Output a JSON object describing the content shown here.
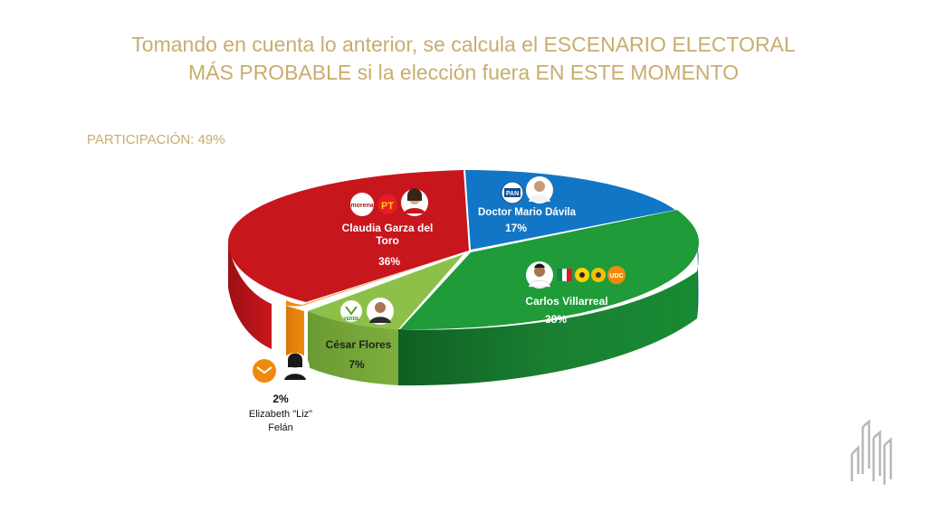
{
  "header": {
    "title_line1": "Tomando en cuenta lo anterior, se calcula el ESCENARIO ELECTORAL",
    "title_line2": "MÁS PROBABLE si la elección fuera EN ESTE MOMENTO",
    "participation": "PARTICIPACIÓN: 49%"
  },
  "colors": {
    "title": "#c8ad6e",
    "red": "#c8161d",
    "blue": "#1276c6",
    "green": "#1f9b3a",
    "light_green": "#8cc049",
    "orange": "#f08a0c"
  },
  "chart_data": {
    "type": "pie",
    "style": "3d-exploded",
    "slices": [
      {
        "name_line1": "Doctor Mario Dávila",
        "name_line2": "",
        "value": 17,
        "label": "17%",
        "color": "#1276c6",
        "parties": [
          "PAN"
        ],
        "icons": [
          "pan-logo-icon",
          "candidate-photo-icon"
        ]
      },
      {
        "name_line1": "Carlos Villarreal",
        "name_line2": "",
        "value": 38,
        "label": "38%",
        "color": "#1f9b3a",
        "parties": [
          "PRI",
          "PRD",
          "UDC"
        ],
        "icons": [
          "candidate-photo-icon",
          "pri-logo-icon",
          "prd-logo-icon",
          "udc-logo-icon"
        ]
      },
      {
        "name_line1": "César Flores",
        "name_line2": "",
        "value": 7,
        "label": "7%",
        "color": "#8cc049",
        "parties": [
          "VERDE"
        ],
        "icons": [
          "verde-logo-icon",
          "candidate-photo-icon"
        ]
      },
      {
        "name_line1": "Elizabeth \"Liz\"",
        "name_line2": "Felán",
        "value": 2,
        "label": "2%",
        "color": "#f08a0c",
        "parties": [
          "MC"
        ],
        "icons": [
          "mc-logo-icon",
          "candidate-photo-icon"
        ]
      },
      {
        "name_line1": "Claudia Garza del",
        "name_line2": "Toro",
        "value": 36,
        "label": "36%",
        "color": "#c8161d",
        "parties": [
          "morena",
          "PT"
        ],
        "icons": [
          "morena-logo-icon",
          "pt-logo-icon",
          "candidate-photo-icon"
        ]
      }
    ]
  },
  "party_labels": {
    "morena": "morena",
    "pt": "PT",
    "pan": "PAN",
    "udc": "UDC",
    "verde": "VERDE"
  }
}
